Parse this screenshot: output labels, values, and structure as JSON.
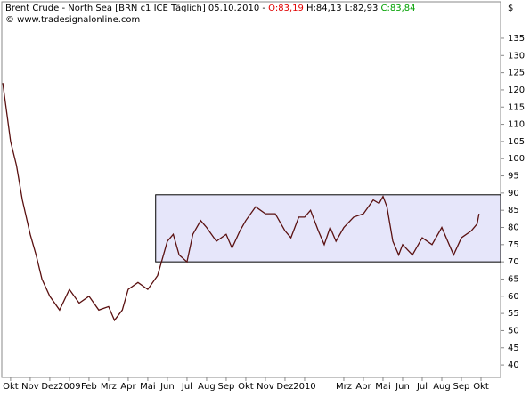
{
  "chart_data": {
    "type": "line",
    "title": "Brent Crude - North Sea [BRN c1 ICE  Täglich] 05.10.2010 -",
    "open_label": "O:83,19",
    "high_low_label": "H:84,13 L:82,93",
    "close_label": "C:83,84",
    "subtitle": "© www.tradesignalonline.com",
    "y_label": "$",
    "x": [
      -0.4,
      0,
      0.3,
      0.6,
      1,
      1.3,
      1.6,
      2,
      2.5,
      3,
      3.5,
      4,
      4.5,
      5,
      5.3,
      5.7,
      6,
      6.5,
      7,
      7.5,
      7.7,
      8,
      8.3,
      8.6,
      9,
      9.3,
      9.7,
      10,
      10.5,
      11,
      11.3,
      11.7,
      12,
      12.5,
      13,
      13.5,
      14,
      14.3,
      14.7,
      15,
      15.3,
      15.7,
      16,
      16.3,
      16.6,
      17,
      17.5,
      18,
      18.5,
      18.8,
      19,
      19.2,
      19.5,
      19.8,
      20,
      20.5,
      21,
      21.5,
      22,
      22.3,
      22.6,
      23,
      23.5,
      23.8,
      23.9
    ],
    "series": [
      {
        "name": "Brent Crude",
        "color": "#5a1010",
        "values": [
          122,
          105,
          98,
          88,
          78,
          72,
          65,
          60,
          56,
          62,
          58,
          60,
          56,
          57,
          53,
          56,
          62,
          64,
          62,
          66,
          70,
          76,
          78,
          72,
          70,
          78,
          82,
          80,
          76,
          78,
          74,
          79,
          82,
          86,
          84,
          84,
          79,
          77,
          83,
          83,
          85,
          79,
          75,
          80,
          76,
          80,
          83,
          84,
          88,
          87,
          89,
          86,
          76,
          72,
          75,
          72,
          77,
          75,
          80,
          76,
          72,
          77,
          79,
          81,
          84
        ]
      }
    ],
    "range_box": {
      "x": [
        7.4,
        25
      ],
      "y": [
        70,
        89.5
      ],
      "color": "#e6e6fa"
    },
    "xlim": [
      -0.45,
      25
    ],
    "ylim": [
      36.4,
      145.6
    ],
    "xticks": [
      {
        "value": 0,
        "label": "Okt"
      },
      {
        "value": 1,
        "label": "Nov"
      },
      {
        "value": 2,
        "label": "Dez"
      },
      {
        "value": 3,
        "label": "2009"
      },
      {
        "value": 4,
        "label": "Feb"
      },
      {
        "value": 5,
        "label": "Mrz"
      },
      {
        "value": 6,
        "label": "Apr"
      },
      {
        "value": 7,
        "label": "Mai"
      },
      {
        "value": 8,
        "label": "Jun"
      },
      {
        "value": 9,
        "label": "Jul"
      },
      {
        "value": 10,
        "label": "Aug"
      },
      {
        "value": 11,
        "label": "Sep"
      },
      {
        "value": 12,
        "label": "Okt"
      },
      {
        "value": 13,
        "label": "Nov"
      },
      {
        "value": 14,
        "label": "Dez"
      },
      {
        "value": 15,
        "label": "2010"
      },
      {
        "value": 17,
        "label": "Mrz"
      },
      {
        "value": 18,
        "label": "Apr"
      },
      {
        "value": 19,
        "label": "Mai"
      },
      {
        "value": 20,
        "label": "Jun"
      },
      {
        "value": 21,
        "label": "Jul"
      },
      {
        "value": 22,
        "label": "Aug"
      },
      {
        "value": 23,
        "label": "Sep"
      },
      {
        "value": 24,
        "label": "Okt"
      }
    ],
    "yticks": [
      40,
      45,
      50,
      55,
      60,
      65,
      70,
      75,
      80,
      85,
      90,
      95,
      100,
      105,
      110,
      115,
      120,
      125,
      130,
      135
    ]
  }
}
